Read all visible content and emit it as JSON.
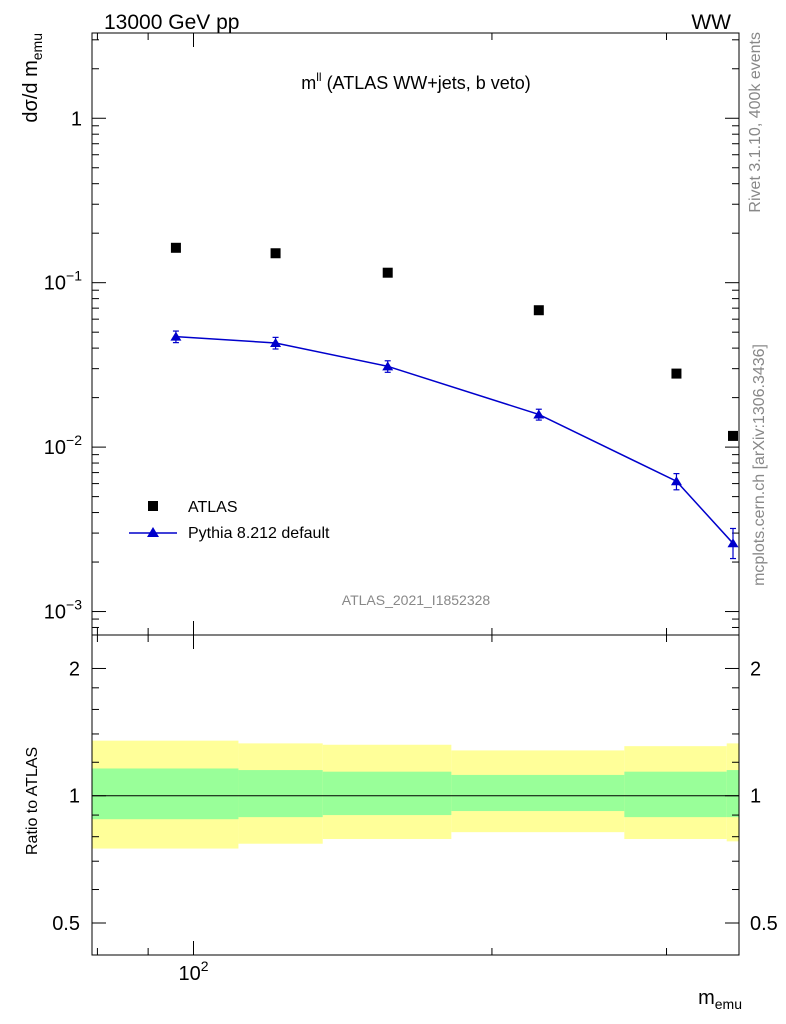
{
  "header": {
    "left": "13000 GeV pp",
    "right": "WW"
  },
  "side_labels": {
    "version": "Rivet 3.1.10,  400k events",
    "source": "mcplots.cern.ch [arXiv:1306.3436]"
  },
  "chart_data": [
    {
      "type": "scatter",
      "panel": "main",
      "title_main": "m",
      "title_sup": "ll",
      "title_rest": " (ATLAS WW+jets, b veto)",
      "ylabel": "dσ/d m",
      "ylabel_sub": "emu",
      "analysis_tag": "ATLAS_2021_I1852328",
      "x_scale": "log",
      "y_scale": "log",
      "xlim": [
        79,
        355
      ],
      "ylim": [
        0.00072,
        3.3
      ],
      "ytick_labels": [
        {
          "v": 1,
          "base": "1",
          "exp": ""
        },
        {
          "v": 0.1,
          "base": "10",
          "exp": "−1"
        },
        {
          "v": 0.01,
          "base": "10",
          "exp": "−2"
        },
        {
          "v": 0.001,
          "base": "10",
          "exp": "−3"
        }
      ],
      "legend_position": "lower-left",
      "series": [
        {
          "name": "ATLAS",
          "marker": "square",
          "color": "#000000",
          "x": [
            96,
            121,
            157,
            223,
            307,
            377
          ],
          "y": [
            0.163,
            0.151,
            0.115,
            0.068,
            0.028,
            0.0117
          ]
        },
        {
          "name": "Pythia 8.212 default",
          "marker": "triangle",
          "color": "#0000cc",
          "x": [
            96,
            121,
            157,
            223,
            307,
            377
          ],
          "y": [
            0.047,
            0.043,
            0.031,
            0.0158,
            0.0062,
            0.0026
          ],
          "yerr_low": [
            0.0038,
            0.0035,
            0.0025,
            0.0012,
            0.0007,
            0.0005
          ],
          "yerr_high": [
            0.0038,
            0.0035,
            0.0025,
            0.0012,
            0.0007,
            0.0006
          ]
        }
      ]
    },
    {
      "type": "area",
      "panel": "ratio",
      "ylabel": "Ratio to ATLAS",
      "xlabel": "m",
      "xlabel_sub": "emu",
      "x_scale": "log",
      "y_scale": "log",
      "xlim": [
        79,
        355
      ],
      "ylim": [
        0.42,
        2.4
      ],
      "ytick_labels": [
        {
          "v": 2,
          "label": "2"
        },
        {
          "v": 1,
          "label": "1"
        },
        {
          "v": 0.5,
          "label": "0.5"
        }
      ],
      "xtick_labels": [
        {
          "v": 100,
          "base": "10",
          "exp": "2"
        }
      ],
      "reference_line": 1,
      "bins": [
        79,
        111,
        135,
        182,
        272,
        345,
        355
      ],
      "band_outer": {
        "color": "#ffff99",
        "low": [
          0.75,
          0.77,
          0.79,
          0.82,
          0.79,
          0.78
        ],
        "high": [
          1.35,
          1.33,
          1.32,
          1.28,
          1.31,
          1.33
        ]
      },
      "band_inner": {
        "color": "#99ff99",
        "low": [
          0.88,
          0.89,
          0.9,
          0.92,
          0.89,
          0.89
        ],
        "high": [
          1.16,
          1.15,
          1.14,
          1.12,
          1.14,
          1.15
        ]
      }
    }
  ]
}
